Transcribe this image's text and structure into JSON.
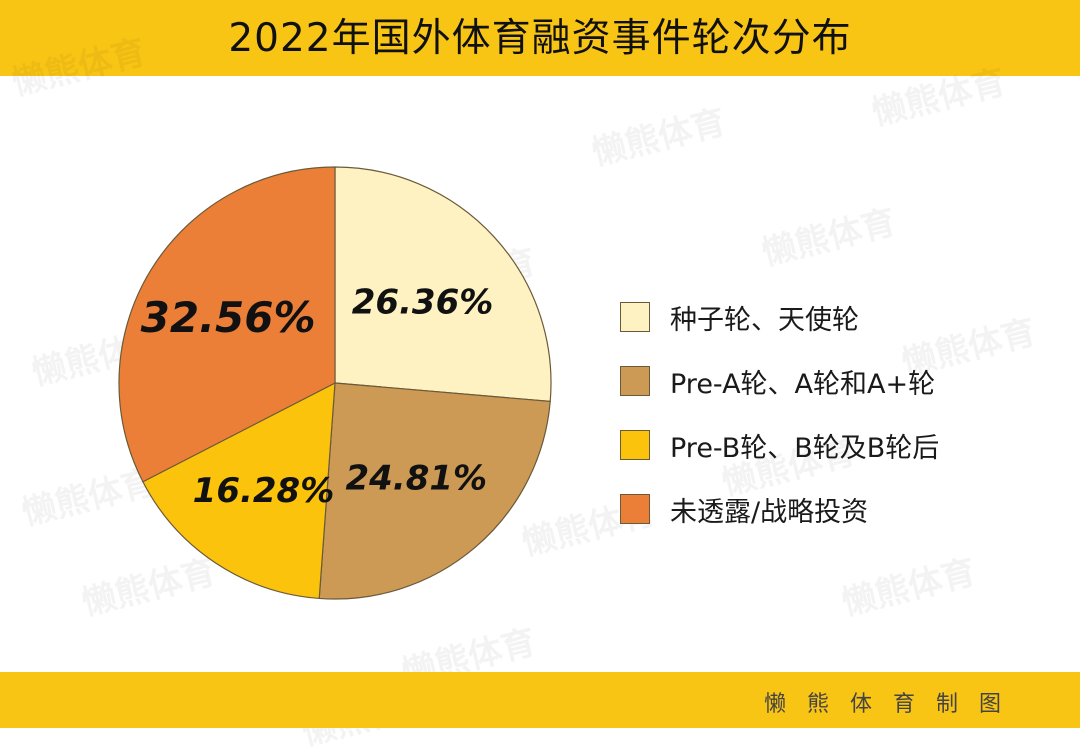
{
  "header": {
    "title": "2022年国外体育融资事件轮次分布"
  },
  "footer": {
    "credit": "懒熊体育制图"
  },
  "watermark": {
    "text": "懒熊体育"
  },
  "chart_data": {
    "type": "pie",
    "title": "2022年国外体育融资事件轮次分布",
    "start_angle": "12 o'clock, clockwise",
    "legend_position": "right",
    "slices": [
      {
        "label": "种子轮、天使轮",
        "value": 26.36,
        "display": "26.36%",
        "color": "#fff2c2"
      },
      {
        "label": "Pre-A轮、A轮和A+轮",
        "value": 24.81,
        "display": "24.81%",
        "color": "#cc9a54"
      },
      {
        "label": "Pre-B轮、B轮及B轮后",
        "value": 16.28,
        "display": "16.28%",
        "color": "#fcc30c"
      },
      {
        "label": "未透露/战略投资",
        "value": 32.56,
        "display": "32.56%",
        "color": "#eb7f38"
      }
    ]
  }
}
